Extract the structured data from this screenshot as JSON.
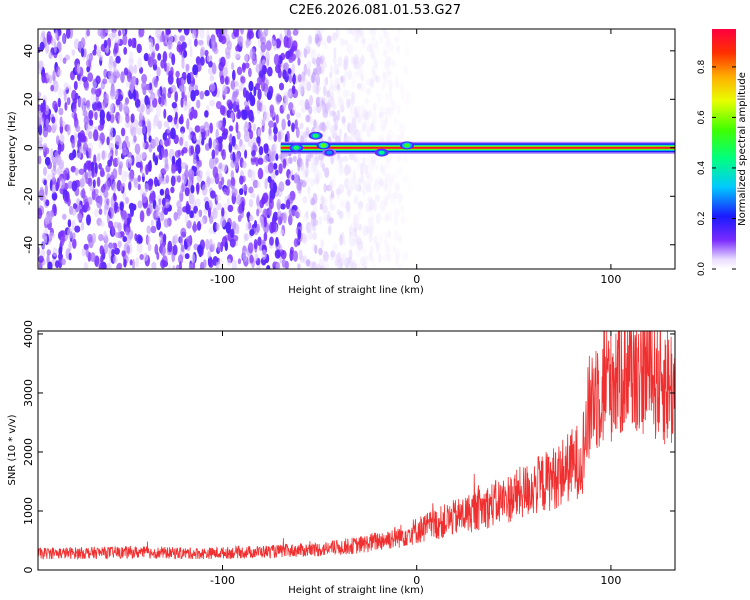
{
  "title": "C2E6.2026.081.01.53.G27",
  "colors": {
    "snr_line": "#f03030",
    "spec_purple": "#7b2cff",
    "background": "#ffffff"
  },
  "chart_data": [
    {
      "type": "heatmap",
      "name": "spectrogram",
      "xlabel": "Height of straight line (km)",
      "ylabel": "Frequency (Hz)",
      "xlim": [
        -195,
        133
      ],
      "ylim": [
        -50,
        49
      ],
      "x_ticks": [
        -100,
        0,
        100
      ],
      "x_tick_labels": [
        "-100",
        "0",
        "100"
      ],
      "y_ticks": [
        -40,
        -20,
        0,
        20,
        40
      ],
      "y_tick_labels": [
        "-40",
        "-20",
        "0",
        "20",
        "40"
      ],
      "noise_region_x": [
        -195,
        5
      ],
      "noise_fade_start_x": -60,
      "noise_amplitude": 0.25,
      "carrier_frequency": 0,
      "carrier_start_x": -70,
      "carrier_end_x": 133,
      "carrier_amplitude": 0.95,
      "features": [
        {
          "x": -52,
          "y": 5,
          "amplitude": 0.5
        },
        {
          "x": -48,
          "y": 1,
          "amplitude": 0.6
        },
        {
          "x": -45,
          "y": -2,
          "amplitude": 0.3
        },
        {
          "x": -62,
          "y": 0,
          "amplitude": 0.5
        },
        {
          "x": -18,
          "y": -2,
          "amplitude": 0.45
        },
        {
          "x": -5,
          "y": 1,
          "amplitude": 0.55
        }
      ],
      "colorbar": {
        "label": "Normalized spectral amplitude",
        "range": [
          0,
          0.95
        ],
        "ticks": [
          0.0,
          0.2,
          0.4,
          0.6,
          0.8
        ],
        "tick_labels": [
          "0.0",
          "0.2",
          "0.4",
          "0.6",
          "0.8"
        ]
      }
    },
    {
      "type": "line",
      "name": "snr",
      "xlabel": "Height of straight line (km)",
      "ylabel": "SNR (10 * v/v)",
      "xlim": [
        -195,
        133
      ],
      "ylim": [
        0,
        4050
      ],
      "x_ticks": [
        -100,
        0,
        100
      ],
      "x_tick_labels": [
        "-100",
        "0",
        "100"
      ],
      "y_ticks": [
        0,
        1000,
        2000,
        3000,
        4000
      ],
      "y_tick_labels": [
        "0",
        "1000",
        "2000",
        "3000",
        "4000"
      ],
      "series": [
        {
          "name": "SNR",
          "x": [
            -195,
            -170,
            -150,
            -130,
            -110,
            -90,
            -70,
            -50,
            -30,
            -10,
            10,
            30,
            50,
            70,
            85,
            90,
            100,
            110,
            120,
            133
          ],
          "values": [
            280,
            290,
            300,
            290,
            280,
            300,
            320,
            350,
            420,
            560,
            780,
            1000,
            1250,
            1550,
            1900,
            2950,
            3300,
            3500,
            3400,
            3050
          ],
          "noise_fraction": 0.35
        }
      ]
    }
  ]
}
